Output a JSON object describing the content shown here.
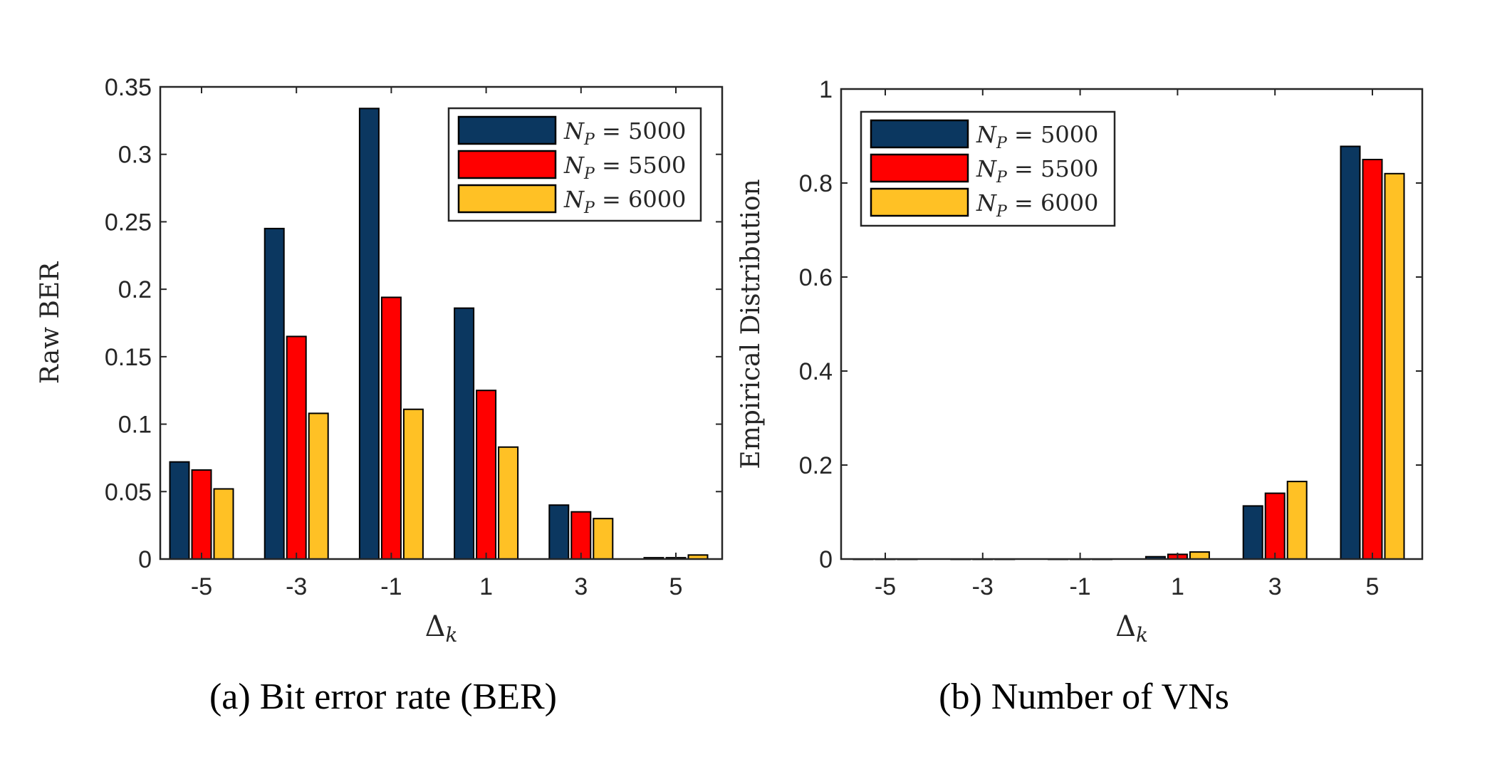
{
  "colors": {
    "series": [
      "#0b3760",
      "#ff0000",
      "#ffc125"
    ],
    "axis": "#262626"
  },
  "chart_data": [
    {
      "type": "bar",
      "caption": "(a) Bit error rate (BER)",
      "xlabel": "Δk",
      "ylabel": "Raw BER",
      "categories": [
        "-5",
        "-3",
        "-1",
        "1",
        "3",
        "5"
      ],
      "x": [
        -5,
        -3,
        -1,
        1,
        3,
        5
      ],
      "ylim": [
        0,
        0.35
      ],
      "yticks": [
        "0",
        "0.05",
        "0.1",
        "0.15",
        "0.2",
        "0.25",
        "0.3",
        "0.35"
      ],
      "ytick_values": [
        0,
        0.05,
        0.1,
        0.15,
        0.2,
        0.25,
        0.3,
        0.35
      ],
      "legend_placement": "top-right",
      "grid": false,
      "series": [
        {
          "name": "N_P = 5000",
          "values": [
            0.072,
            0.245,
            0.334,
            0.186,
            0.04,
            0.001
          ]
        },
        {
          "name": "N_P = 5500",
          "values": [
            0.066,
            0.165,
            0.194,
            0.125,
            0.035,
            0.001
          ]
        },
        {
          "name": "N_P = 6000",
          "values": [
            0.052,
            0.108,
            0.111,
            0.083,
            0.03,
            0.003
          ]
        }
      ]
    },
    {
      "type": "bar",
      "caption": "(b) Number of VNs",
      "xlabel": "Δk",
      "ylabel": "Empirical Distribution",
      "categories": [
        "-5",
        "-3",
        "-1",
        "1",
        "3",
        "5"
      ],
      "x": [
        -5,
        -3,
        -1,
        1,
        3,
        5
      ],
      "ylim": [
        0,
        1
      ],
      "yticks": [
        "0",
        "0.2",
        "0.4",
        "0.6",
        "0.8",
        "1"
      ],
      "ytick_values": [
        0,
        0.2,
        0.4,
        0.6,
        0.8,
        1
      ],
      "legend_placement": "top-left",
      "grid": false,
      "series": [
        {
          "name": "N_P = 5000",
          "values": [
            0,
            0,
            0,
            0.005,
            0.113,
            0.878
          ]
        },
        {
          "name": "N_P = 5500",
          "values": [
            0,
            0,
            0,
            0.01,
            0.14,
            0.85
          ]
        },
        {
          "name": "N_P = 6000",
          "values": [
            0,
            0,
            0,
            0.015,
            0.165,
            0.82
          ]
        }
      ]
    }
  ]
}
